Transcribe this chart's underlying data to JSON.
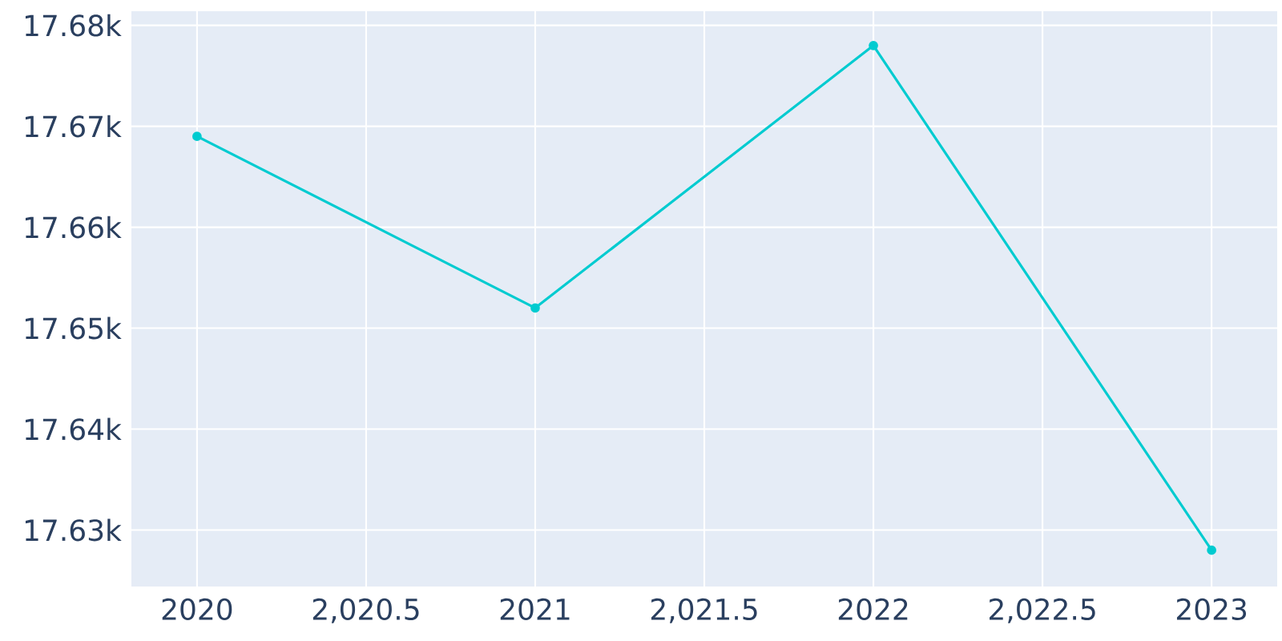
{
  "chart_data": {
    "type": "line",
    "x": [
      2020,
      2021,
      2022,
      2023
    ],
    "series": [
      {
        "color": "#00cbd0",
        "values": [
          17669,
          17652,
          17678,
          17628
        ]
      }
    ],
    "xlim": [
      2019.806,
      2023.194
    ],
    "ylim": [
      17624.4,
      17681.4
    ],
    "xticks": [
      2020,
      {
        "value": 2020.5,
        "label": "2,020.5"
      },
      2021,
      {
        "value": 2021.5,
        "label": "2,021.5"
      },
      2022,
      {
        "value": 2022.5,
        "label": "2,022.5"
      },
      2023
    ],
    "yticks": [
      {
        "value": 17630,
        "label": "17.63k"
      },
      {
        "value": 17640,
        "label": "17.64k"
      },
      {
        "value": 17650,
        "label": "17.65k"
      },
      {
        "value": 17660,
        "label": "17.66k"
      },
      {
        "value": 17670,
        "label": "17.67k"
      },
      {
        "value": 17680,
        "label": "17.68k"
      }
    ],
    "grid": true,
    "marker": "circle",
    "line_style": "solid"
  }
}
